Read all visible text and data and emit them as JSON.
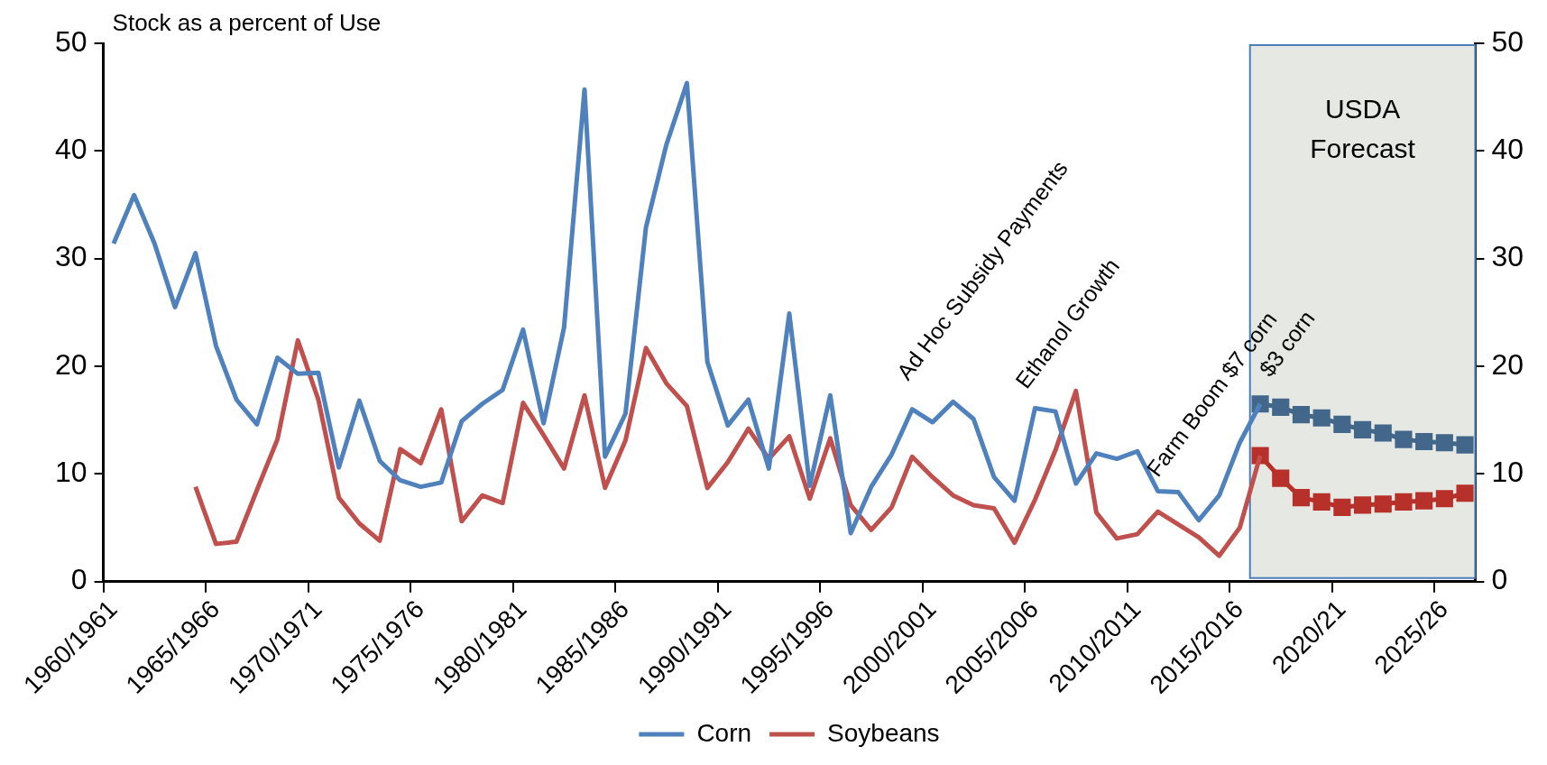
{
  "chart_data": {
    "type": "line",
    "ylabel": "Stock as a percent of Use",
    "categories": [
      "1960/1961",
      null,
      null,
      null,
      null,
      "1965/1966",
      null,
      null,
      null,
      null,
      "1970/1971",
      null,
      null,
      null,
      null,
      "1975/1976",
      null,
      null,
      null,
      null,
      "1980/1981",
      null,
      null,
      null,
      null,
      "1985/1986",
      null,
      null,
      null,
      null,
      "1990/1991",
      null,
      null,
      null,
      null,
      "1995/1996",
      null,
      null,
      null,
      null,
      "2000/2001",
      null,
      null,
      null,
      null,
      "2005/2006",
      null,
      null,
      null,
      null,
      "2010/2011",
      null,
      null,
      null,
      null,
      "2015/2016",
      null,
      null,
      null,
      null,
      "2020/21",
      null,
      null,
      null,
      null,
      "2025/26",
      null
    ],
    "series": [
      {
        "name": "Corn",
        "color": "#4f81bd",
        "marker": "none",
        "values": [
          31.4,
          35.9,
          31.4,
          25.5,
          30.5,
          21.9,
          16.9,
          14.6,
          20.8,
          19.3,
          19.4,
          10.6,
          16.8,
          11.2,
          9.4,
          8.8,
          9.2,
          14.9,
          16.5,
          17.8,
          23.4,
          14.7,
          23.6,
          45.7,
          11.6,
          15.6,
          32.9,
          40.6,
          46.3,
          20.4,
          14.5,
          16.9,
          10.5,
          24.9,
          8.9,
          17.3,
          4.5,
          8.8,
          11.8,
          16.0,
          14.8,
          16.7,
          15.1,
          9.7,
          7.5,
          16.1,
          15.8,
          9.1,
          11.9,
          11.4,
          12.1,
          8.4,
          8.3,
          5.7,
          8.0,
          12.9,
          16.5,
          null,
          null,
          null,
          null,
          null,
          null,
          null,
          null,
          null,
          null
        ]
      },
      {
        "name": "Soybeans",
        "color": "#c0504d",
        "marker": "none",
        "values": [
          null,
          null,
          null,
          null,
          8.8,
          3.5,
          3.7,
          8.5,
          13.2,
          22.4,
          16.9,
          7.8,
          5.4,
          3.8,
          12.3,
          11.0,
          16.0,
          5.6,
          8.0,
          7.3,
          16.6,
          13.6,
          10.5,
          17.3,
          8.7,
          13.1,
          21.7,
          18.4,
          16.3,
          8.7,
          11.1,
          14.2,
          11.4,
          13.5,
          7.7,
          13.3,
          7.1,
          4.8,
          6.9,
          11.6,
          9.7,
          8.0,
          7.1,
          6.8,
          3.6,
          7.6,
          12.2,
          17.7,
          6.4,
          4.0,
          4.4,
          6.5,
          5.3,
          4.1,
          2.4,
          5.0,
          11.7,
          null,
          null,
          null,
          null,
          null,
          null,
          null,
          null,
          null,
          null
        ]
      },
      {
        "color": "#43678b",
        "marker": "square",
        "values": [
          null,
          null,
          null,
          null,
          null,
          null,
          null,
          null,
          null,
          null,
          null,
          null,
          null,
          null,
          null,
          null,
          null,
          null,
          null,
          null,
          null,
          null,
          null,
          null,
          null,
          null,
          null,
          null,
          null,
          null,
          null,
          null,
          null,
          null,
          null,
          null,
          null,
          null,
          null,
          null,
          null,
          null,
          null,
          null,
          null,
          null,
          null,
          null,
          null,
          null,
          null,
          null,
          null,
          null,
          null,
          null,
          16.5,
          16.2,
          15.5,
          15.2,
          14.6,
          14.1,
          13.8,
          13.2,
          13.0,
          12.9,
          12.7
        ]
      },
      {
        "color": "#b8302a",
        "marker": "square",
        "values": [
          null,
          null,
          null,
          null,
          null,
          null,
          null,
          null,
          null,
          null,
          null,
          null,
          null,
          null,
          null,
          null,
          null,
          null,
          null,
          null,
          null,
          null,
          null,
          null,
          null,
          null,
          null,
          null,
          null,
          null,
          null,
          null,
          null,
          null,
          null,
          null,
          null,
          null,
          null,
          null,
          null,
          null,
          null,
          null,
          null,
          null,
          null,
          null,
          null,
          null,
          null,
          null,
          null,
          null,
          null,
          null,
          11.7,
          9.6,
          7.8,
          7.4,
          6.9,
          7.1,
          7.2,
          7.4,
          7.5,
          7.7,
          8.2
        ]
      }
    ],
    "ylim": [
      0,
      50
    ],
    "yticks": [
      0,
      10,
      20,
      30,
      40,
      50
    ],
    "y2lim": [
      0,
      50
    ],
    "y2ticks": [
      0,
      10,
      20,
      30,
      40,
      50
    ],
    "grid": false,
    "legend": "bottom",
    "line_style": "solid",
    "annotations": [
      "Ad Hoc Subsidy Payments",
      "Ethanol Growth",
      "Farm Boom $7 corn",
      "$3 corn",
      "USDA Forecast"
    ]
  }
}
